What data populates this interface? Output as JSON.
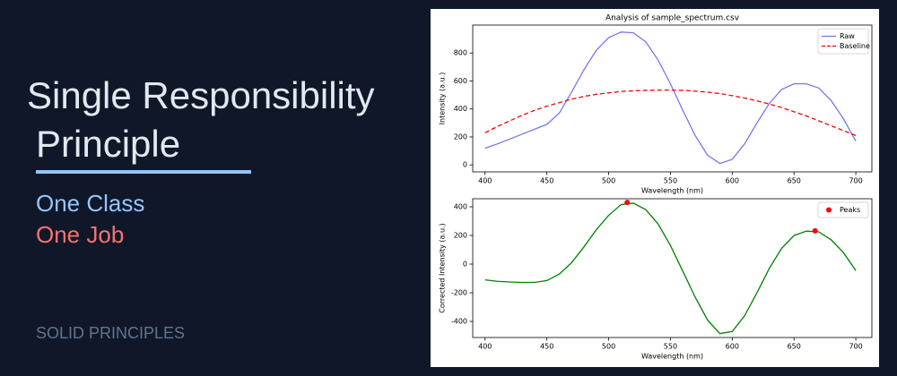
{
  "slide": {
    "title_lines": [
      "Single Responsibility",
      "Principle"
    ],
    "tagline_1": "One Class",
    "tagline_2": "One Job",
    "footer": "SOLID PRINCIPLES"
  },
  "chart_data": [
    {
      "type": "line",
      "title": "Analysis of sample_spectrum.csv",
      "xlabel": "Wavelength (nm)",
      "ylabel": "Intensity (a.u.)",
      "x": [
        400,
        410,
        420,
        430,
        440,
        450,
        460,
        470,
        480,
        490,
        500,
        510,
        520,
        530,
        540,
        550,
        560,
        570,
        580,
        590,
        600,
        610,
        620,
        630,
        640,
        650,
        660,
        670,
        680,
        690,
        700
      ],
      "xlim": [
        390,
        713
      ],
      "ylim": [
        -50,
        1000
      ],
      "xticks": [
        400,
        450,
        500,
        550,
        600,
        650,
        700
      ],
      "yticks": [
        0,
        200,
        400,
        600,
        800
      ],
      "legend": "upper right",
      "series": [
        {
          "name": "Raw",
          "color": "#7777ee",
          "dashed": false,
          "values": [
            120,
            150,
            185,
            220,
            255,
            290,
            370,
            520,
            680,
            820,
            910,
            950,
            945,
            880,
            750,
            580,
            390,
            210,
            70,
            10,
            40,
            150,
            300,
            440,
            540,
            580,
            580,
            550,
            460,
            330,
            170
          ]
        },
        {
          "name": "Baseline",
          "color": "#ff0000",
          "dashed": true,
          "values": [
            230,
            275,
            315,
            355,
            390,
            420,
            445,
            470,
            490,
            505,
            515,
            525,
            530,
            533,
            535,
            535,
            533,
            528,
            520,
            510,
            495,
            478,
            458,
            435,
            410,
            380,
            350,
            315,
            280,
            245,
            210
          ]
        }
      ]
    },
    {
      "type": "line",
      "xlabel": "Wavelength (nm)",
      "ylabel": "Corrected Intensity (a.u.)",
      "x": [
        400,
        410,
        420,
        430,
        440,
        450,
        460,
        470,
        480,
        490,
        500,
        510,
        520,
        530,
        540,
        550,
        560,
        570,
        580,
        590,
        600,
        610,
        620,
        630,
        640,
        650,
        660,
        670,
        680,
        690,
        700
      ],
      "xlim": [
        390,
        713
      ],
      "ylim": [
        -512,
        456
      ],
      "xticks": [
        400,
        450,
        500,
        550,
        600,
        650,
        700
      ],
      "yticks": [
        -400,
        -200,
        0,
        200,
        400
      ],
      "legend": "upper right",
      "series": [
        {
          "color": "#008000",
          "dashed": false,
          "values": [
            -110,
            -120,
            -125,
            -128,
            -128,
            -115,
            -70,
            10,
            120,
            240,
            340,
            415,
            425,
            380,
            280,
            130,
            -50,
            -230,
            -390,
            -485,
            -470,
            -360,
            -200,
            -30,
            110,
            200,
            230,
            225,
            170,
            80,
            -45
          ]
        },
        {
          "name": "Peaks",
          "color": "#ff0000",
          "marker": "circle",
          "x": [
            515,
            667
          ],
          "values": [
            430,
            232
          ]
        }
      ]
    }
  ]
}
